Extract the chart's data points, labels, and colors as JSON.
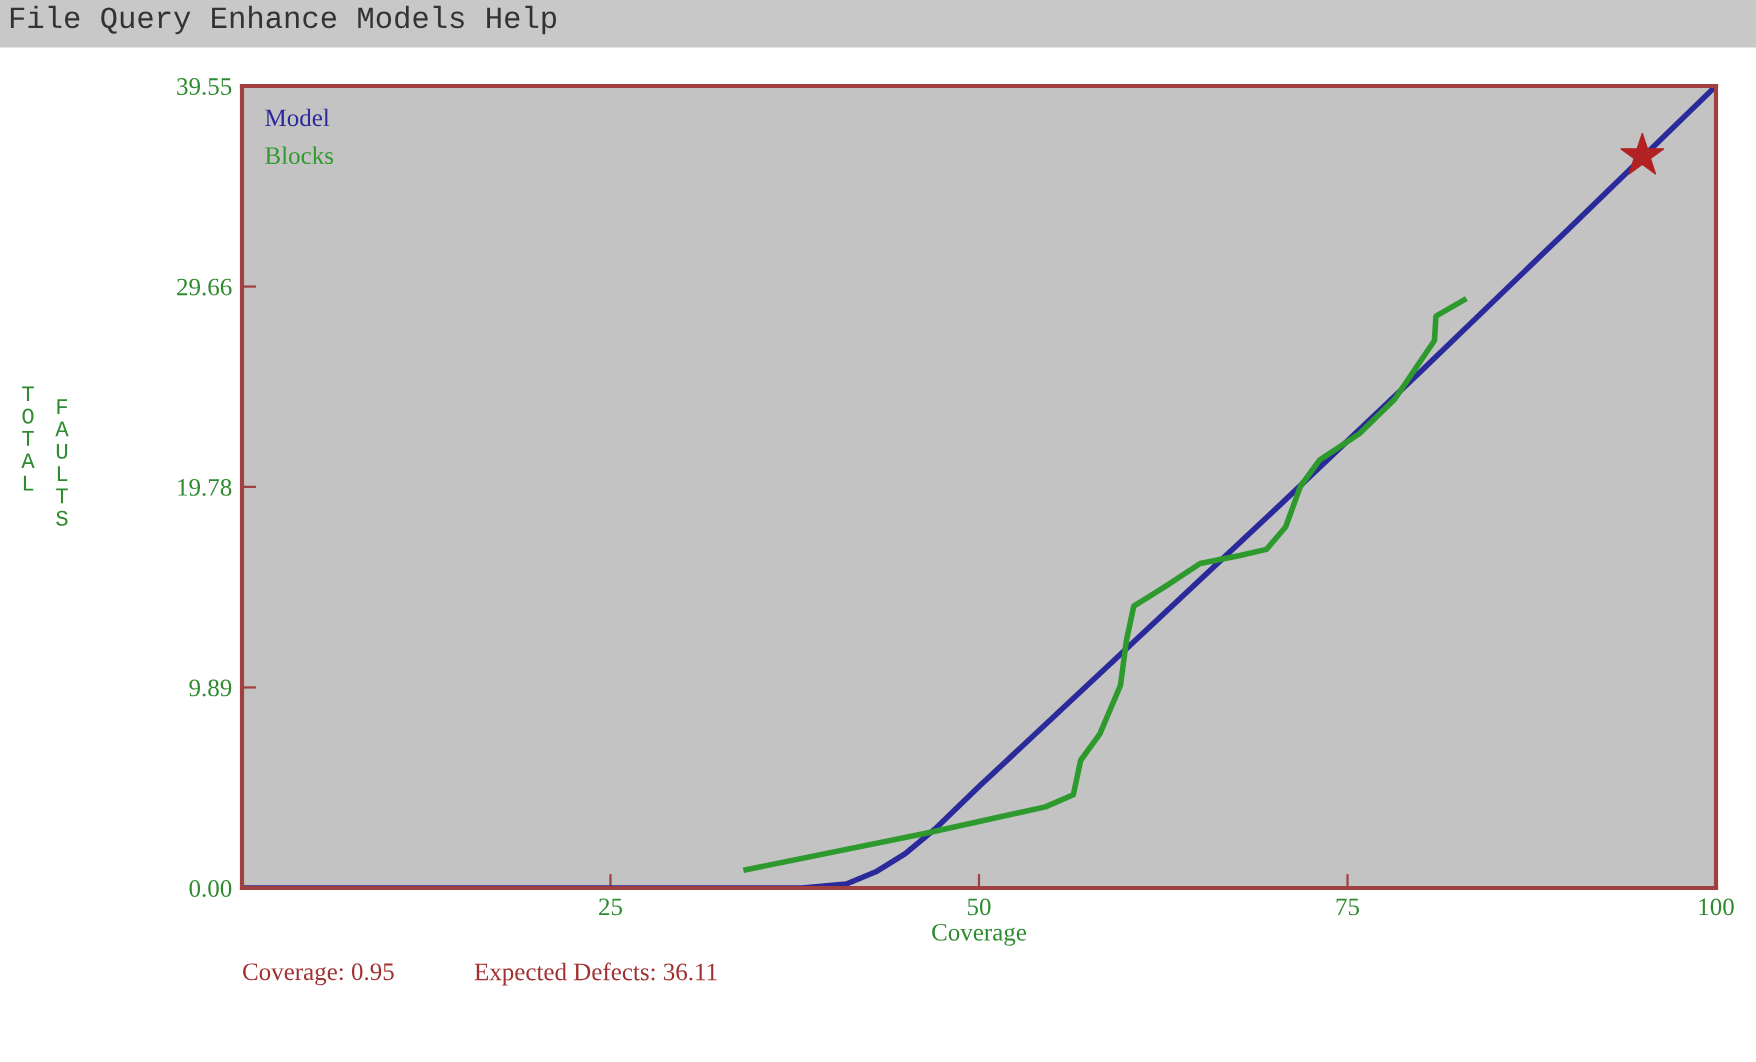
{
  "chart_data": {
    "type": "line",
    "xlabel": "Coverage",
    "ylabel": "TOTAL FAULTS",
    "annotations": [
      "File Query Enhance Models Help",
      "Coverage: 0.95",
      "Expected Defects: 36.11"
    ],
    "series": [
      {
        "name": "Model",
        "color": "#2a2a9a",
        "x": [
          0,
          38,
          41,
          43,
          45,
          47,
          50,
          60,
          70,
          80,
          90,
          100
        ],
        "values": [
          0,
          0,
          0.2,
          0.8,
          1.7,
          2.9,
          5.0,
          11.8,
          18.6,
          25.5,
          32.5,
          39.55
        ]
      },
      {
        "name": "Blocks",
        "color": "#2e9a2e",
        "x": [
          34.2,
          46.4,
          54.5,
          56.4,
          56.9,
          58.2,
          59.6,
          60.0,
          60.5,
          62.7,
          65.0,
          67.7,
          69.5,
          70.8,
          71.8,
          73.1,
          75.8,
          78.2,
          80.9,
          81.0,
          82.9
        ],
        "values": [
          0.9,
          2.7,
          4.0,
          4.6,
          6.3,
          7.6,
          10.0,
          12.2,
          13.9,
          14.9,
          16.0,
          16.4,
          16.7,
          17.8,
          19.8,
          21.1,
          22.4,
          24.1,
          27.0,
          28.2,
          29.0
        ]
      },
      {
        "type": "scatter",
        "color": "#b22222",
        "marker": "star",
        "x": [
          95
        ],
        "values": [
          36.11
        ]
      }
    ],
    "xlim": [
      0,
      100
    ],
    "ylim": [
      0,
      39.55
    ],
    "xticks": [
      25,
      50,
      75,
      100
    ],
    "yticks": [
      {
        "value": 0,
        "label": "0.00"
      },
      9.89,
      19.78,
      29.66,
      39.55
    ],
    "legend": "top left",
    "grid": false
  }
}
